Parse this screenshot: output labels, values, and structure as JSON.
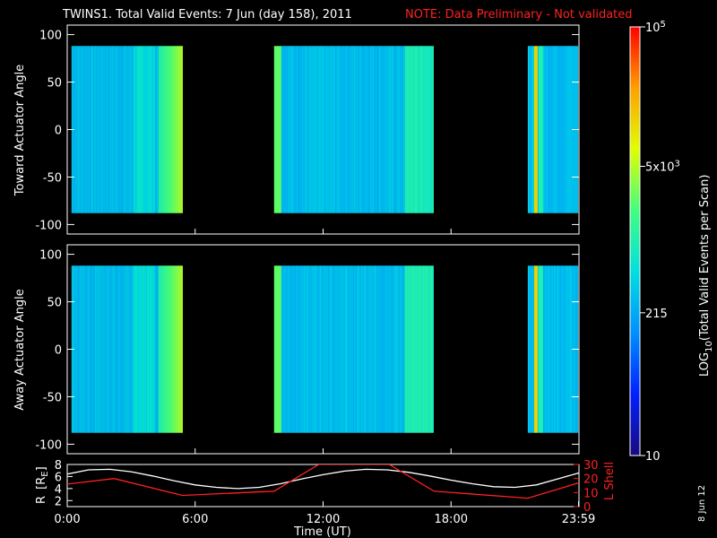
{
  "header": {
    "title": "TWINS1. Total Valid Events:  7 Jun (day 158), 2011",
    "note": "NOTE: Data Preliminary - Not validated"
  },
  "footer": {
    "date_stamp": "8 Jun 12"
  },
  "colors": {
    "background": "#000000",
    "axes": "#ffffff",
    "note": "#ff2020",
    "r_line": "#ffffff",
    "l_shell_line": "#ff2020"
  },
  "chart_data": [
    {
      "type": "heatmap",
      "panel": "top",
      "ylabel": "Toward Actuator Angle",
      "ylim": [
        -110,
        110
      ],
      "yticks": [
        "100",
        "50",
        "0",
        "-50",
        "-100"
      ],
      "ytick_values": [
        100,
        50,
        0,
        -50,
        -100
      ],
      "xlim": [
        0,
        24
      ],
      "angle_range": [
        -88,
        88
      ],
      "data_segments": [
        {
          "start_hour": 0.2,
          "end_hour": 5.4
        },
        {
          "start_hour": 9.7,
          "end_hour": 17.2
        },
        {
          "start_hour": 21.6,
          "end_hour": 23.95
        }
      ],
      "colorbar_label": "LOG10(Total Valid Events per Scan)"
    },
    {
      "type": "heatmap",
      "panel": "middle",
      "ylabel": "Away Actuator Angle",
      "ylim": [
        -110,
        110
      ],
      "yticks": [
        "100",
        "50",
        "0",
        "-50",
        "-100"
      ],
      "ytick_values": [
        100,
        50,
        0,
        -50,
        -100
      ],
      "xlim": [
        0,
        24
      ],
      "angle_range": [
        -88,
        88
      ],
      "data_segments": [
        {
          "start_hour": 0.2,
          "end_hour": 5.4
        },
        {
          "start_hour": 9.7,
          "end_hour": 17.2
        },
        {
          "start_hour": 21.6,
          "end_hour": 23.95
        }
      ],
      "colorbar_label": "LOG10(Total Valid Events per Scan)"
    },
    {
      "type": "line",
      "panel": "bottom",
      "xlabel": "Time (UT)",
      "xticks": [
        "0:00",
        "6:00",
        "12:00",
        "18:00",
        "23:59"
      ],
      "xtick_values": [
        0,
        6,
        12,
        18,
        23.98
      ],
      "xlim": [
        0,
        24
      ],
      "left_axis": {
        "label": "R [RE]",
        "ticks": [
          "8",
          "6",
          "4",
          "2"
        ],
        "tick_values": [
          8,
          6,
          4,
          2
        ],
        "ylim": [
          1,
          8
        ]
      },
      "right_axis": {
        "label": "L Shell",
        "ticks": [
          "30",
          "20",
          "10",
          "0"
        ],
        "tick_values": [
          30,
          20,
          10,
          0
        ],
        "ylim": [
          0,
          30
        ]
      },
      "series": [
        {
          "axis": "left",
          "color": "#ffffff",
          "x": [
            0,
            1,
            2,
            3,
            4,
            5,
            6,
            7,
            8,
            9,
            10,
            11,
            12,
            13,
            14,
            15,
            16,
            17,
            18,
            19,
            20,
            21,
            22,
            23,
            24
          ],
          "y": [
            6.4,
            7.1,
            7.2,
            6.8,
            6.1,
            5.3,
            4.6,
            4.2,
            4.0,
            4.2,
            4.8,
            5.6,
            6.3,
            6.9,
            7.2,
            7.1,
            6.7,
            6.1,
            5.4,
            4.8,
            4.3,
            4.2,
            4.6,
            5.6,
            6.6
          ]
        },
        {
          "axis": "right",
          "color": "#ff2020",
          "x": [
            0,
            2.2,
            5.4,
            9.7,
            11.8,
            15.1,
            17.2,
            21.6,
            24
          ],
          "y": [
            16,
            20,
            8,
            11,
            30,
            30,
            11,
            6,
            17
          ]
        }
      ]
    }
  ],
  "colorbar": {
    "label_log": "LOG",
    "label_sub": "10",
    "label_rest": "(Total Valid Events per Scan)",
    "ticks": [
      {
        "base": "10",
        "exp": "5",
        "value_log": 5.0
      },
      {
        "base": "5x10",
        "exp": "3",
        "value_log": 3.699
      },
      {
        "base": "215",
        "exp": "",
        "value_log": 2.332
      },
      {
        "base": "10",
        "exp": "",
        "value_log": 1.0
      }
    ],
    "range_log": [
      1.0,
      5.0
    ],
    "colormap": [
      "#1a0a80",
      "#0020ff",
      "#0090ff",
      "#00e0e0",
      "#40ff80",
      "#e0ff00",
      "#ffa000",
      "#ff0000"
    ]
  },
  "line_panel": {
    "left_label_r": "R",
    "left_label_open": "[R",
    "left_label_sub": "E",
    "left_label_close": "]"
  }
}
